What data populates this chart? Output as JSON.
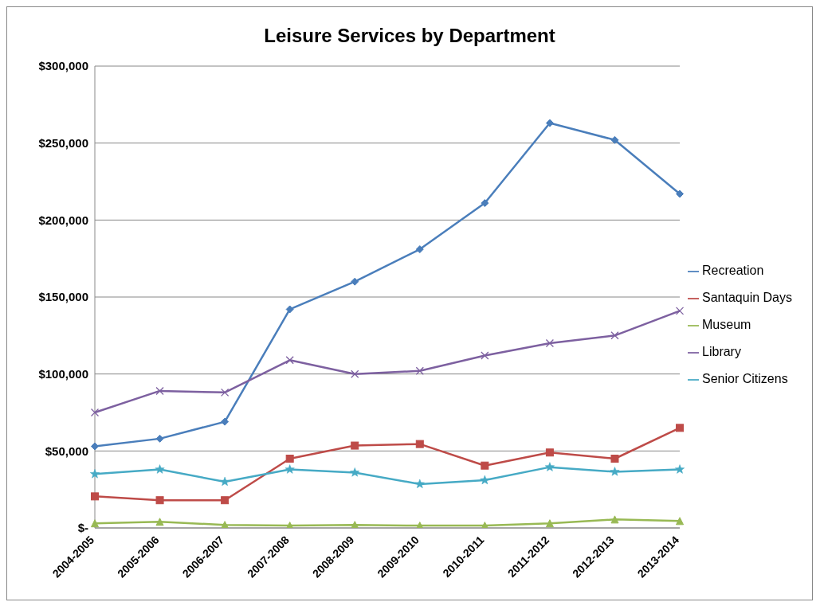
{
  "chart_data": {
    "type": "line",
    "title": "Leisure Services by Department",
    "categories": [
      "2004-2005",
      "2005-2006",
      "2006-2007",
      "2007-2008",
      "2008-2009",
      "2009-2010",
      "2010-2011",
      "2011-2012",
      "2012-2013",
      "2013-2014"
    ],
    "series": [
      {
        "name": "Recreation",
        "color": "#4a7ebb",
        "marker": "diamond",
        "values": [
          53000,
          58000,
          69000,
          142000,
          160000,
          181000,
          211000,
          263000,
          252000,
          217000
        ]
      },
      {
        "name": "Santaquin Days",
        "color": "#be4b48",
        "marker": "square",
        "values": [
          20500,
          18000,
          18000,
          45000,
          53500,
          54500,
          40500,
          49000,
          45000,
          65000
        ]
      },
      {
        "name": "Museum",
        "color": "#98b954",
        "marker": "triangle",
        "values": [
          3000,
          4000,
          2000,
          1500,
          2000,
          1500,
          1500,
          3000,
          5500,
          4500
        ]
      },
      {
        "name": "Library",
        "color": "#7d60a0",
        "marker": "cross",
        "values": [
          75000,
          89000,
          88000,
          109000,
          100000,
          102000,
          112000,
          120000,
          125000,
          141000
        ]
      },
      {
        "name": "Senior Citizens",
        "color": "#46aac5",
        "marker": "star",
        "values": [
          35000,
          38000,
          30000,
          38000,
          36000,
          28500,
          31000,
          39500,
          36500,
          38000
        ]
      }
    ],
    "ylim": [
      0,
      300000
    ],
    "yticks": [
      {
        "value": 0,
        "label": "$-"
      },
      {
        "value": 50000,
        "label": "$50,000"
      },
      {
        "value": 100000,
        "label": "$100,000"
      },
      {
        "value": 150000,
        "label": "$150,000"
      },
      {
        "value": 200000,
        "label": "$200,000"
      },
      {
        "value": 250000,
        "label": "$250,000"
      },
      {
        "value": 300000,
        "label": "$300,000"
      }
    ],
    "grid": "y",
    "legend": "right",
    "line_style": "solid"
  }
}
